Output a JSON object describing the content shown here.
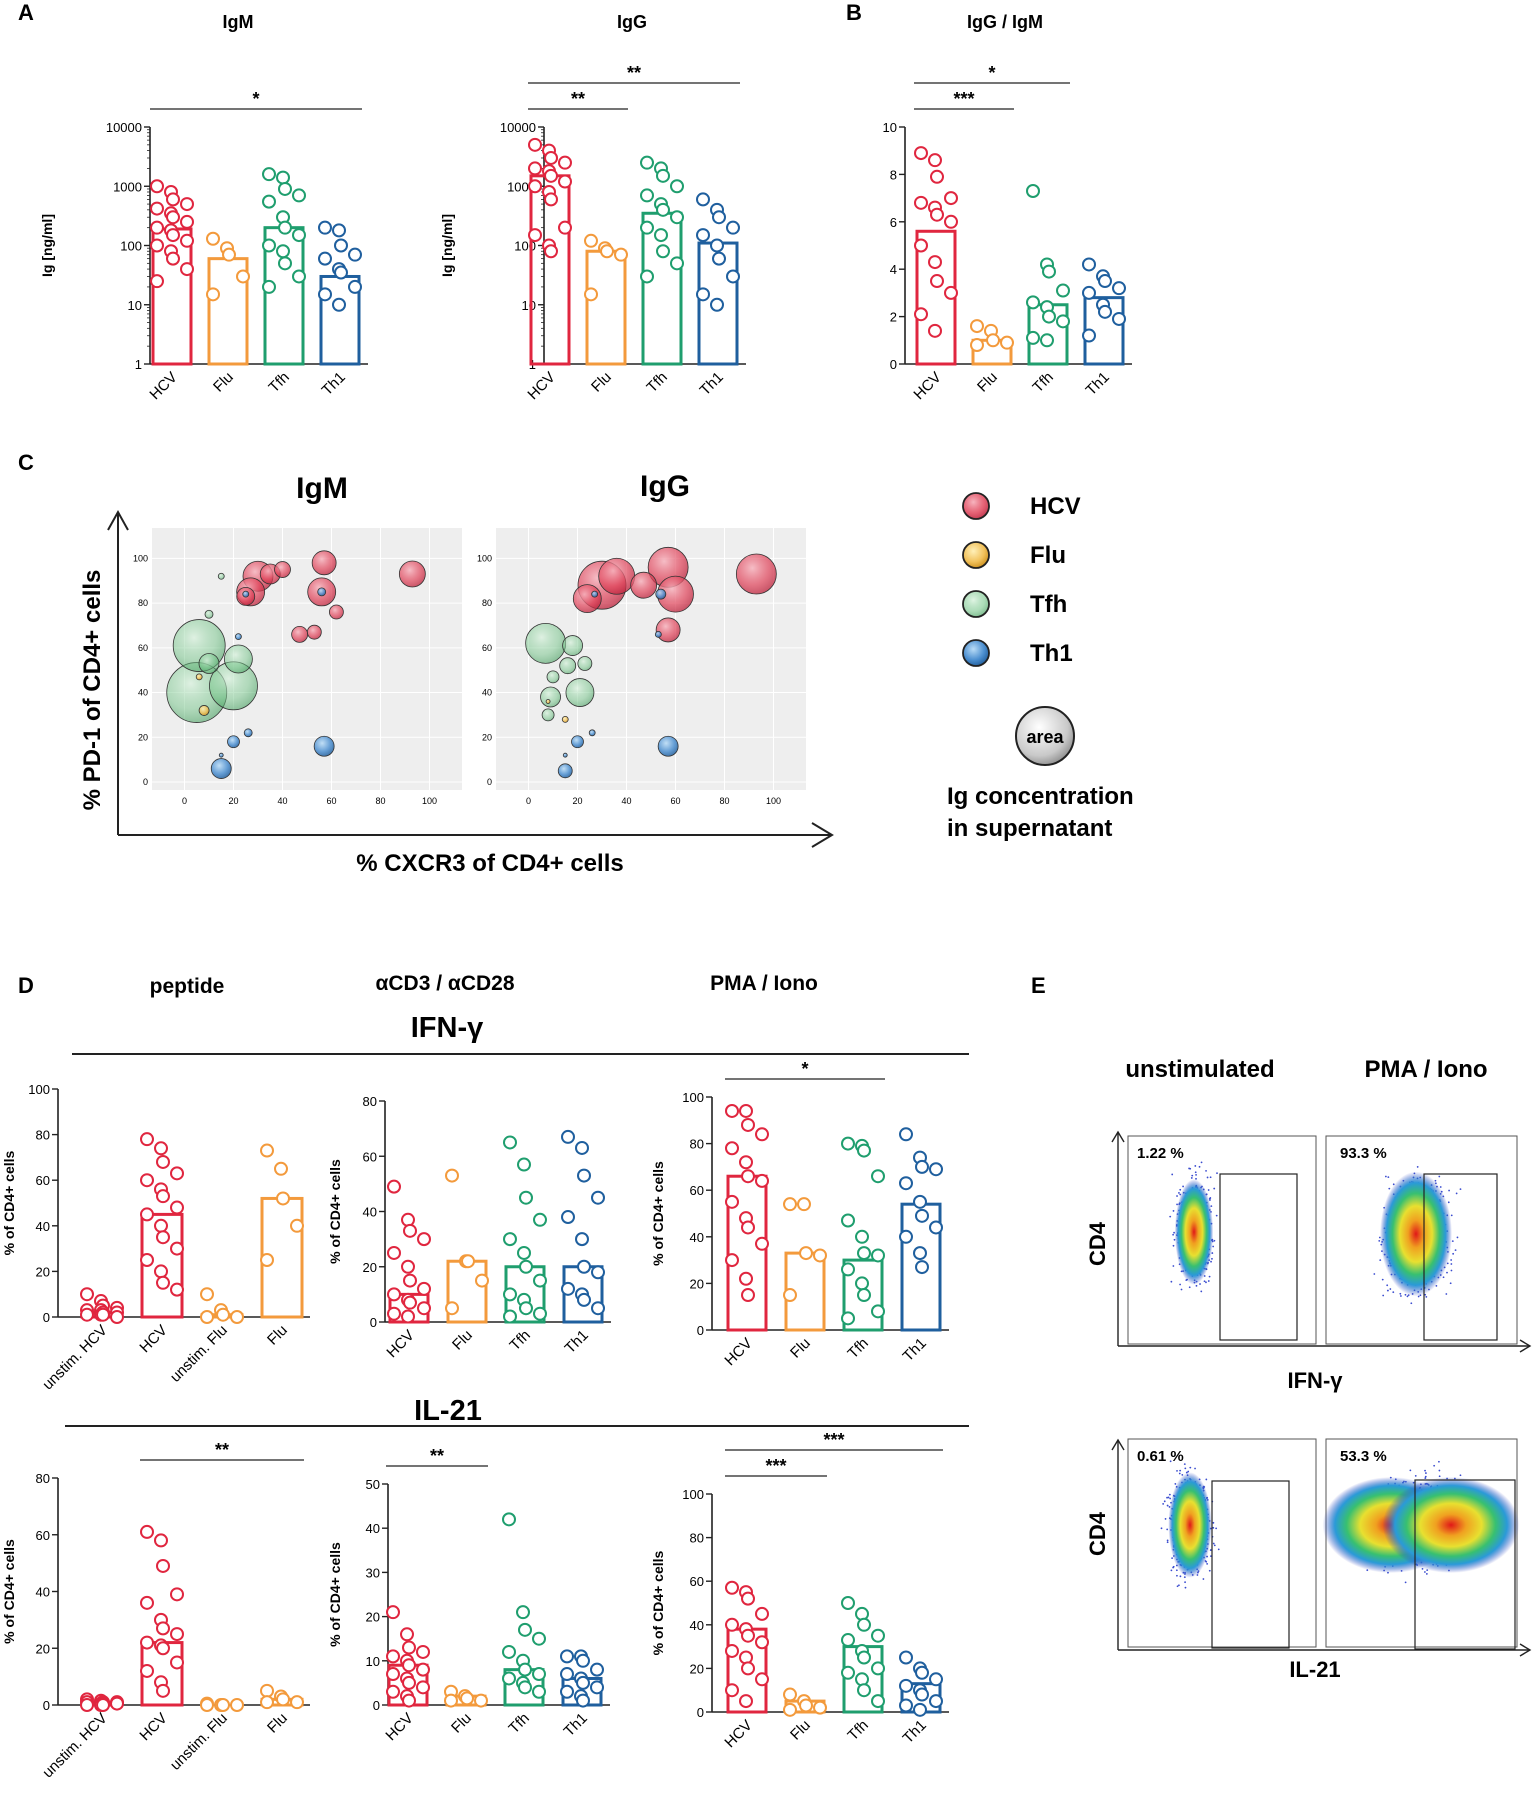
{
  "colors": {
    "HCV": "#e0263f",
    "Flu": "#f39a3c",
    "Tfh": "#1f9e6e",
    "Th1": "#1f5f9e",
    "axis": "#222222"
  },
  "panel_letters": {
    "A": "A",
    "B": "B",
    "C": "C",
    "D": "D",
    "E": "E"
  },
  "chart_data": [
    {
      "id": "A_IgM",
      "type": "bar",
      "scale": "log",
      "title": "IgM",
      "ylabel": "Ig [ng/ml]",
      "ylim": [
        1,
        10000
      ],
      "yticks": [
        "1",
        "10",
        "100",
        "1000",
        "10000"
      ],
      "categories": [
        "HCV",
        "Flu",
        "Tfh",
        "Th1"
      ],
      "values": [
        190,
        60,
        200,
        30
      ],
      "points": [
        [
          1000,
          800,
          600,
          500,
          420,
          350,
          300,
          250,
          200,
          180,
          150,
          120,
          100,
          80,
          60,
          40,
          25
        ],
        [
          130,
          90,
          70,
          30,
          15
        ],
        [
          1600,
          1400,
          900,
          700,
          550,
          300,
          200,
          150,
          100,
          80,
          50,
          30,
          20
        ],
        [
          200,
          180,
          100,
          70,
          60,
          40,
          35,
          20,
          15,
          10
        ]
      ],
      "sig": [
        {
          "from": 0,
          "to": 3,
          "label": "*"
        }
      ]
    },
    {
      "id": "A_IgG",
      "type": "bar",
      "scale": "log",
      "title": "IgG",
      "ylabel": "Ig [ng/ml]",
      "ylim": [
        1,
        10000
      ],
      "yticks": [
        "1",
        "10",
        "100",
        "1000",
        "10000"
      ],
      "categories": [
        "HCV",
        "Flu",
        "Tfh",
        "Th1"
      ],
      "values": [
        1500,
        80,
        350,
        110
      ],
      "points": [
        [
          5000,
          4000,
          3000,
          2500,
          2000,
          1800,
          1500,
          1200,
          1000,
          800,
          600,
          200,
          150,
          100,
          80
        ],
        [
          120,
          90,
          80,
          70,
          15
        ],
        [
          2500,
          2000,
          1500,
          1000,
          700,
          500,
          400,
          300,
          200,
          150,
          80,
          50,
          30
        ],
        [
          600,
          400,
          300,
          200,
          150,
          100,
          60,
          30,
          15,
          10
        ]
      ],
      "sig": [
        {
          "from": 0,
          "to": 1,
          "label": "**"
        },
        {
          "from": 0,
          "to": 3,
          "label": "**"
        }
      ]
    },
    {
      "id": "B_ratio",
      "type": "bar",
      "scale": "linear",
      "title": "IgG / IgM",
      "ylabel": "",
      "ylim": [
        0,
        10
      ],
      "yticks": [
        "0",
        "2",
        "4",
        "6",
        "8",
        "10"
      ],
      "categories": [
        "HCV",
        "Flu",
        "Tfh",
        "Th1"
      ],
      "values": [
        5.6,
        1.0,
        2.5,
        2.8
      ],
      "points": [
        [
          8.9,
          8.6,
          7.9,
          7.0,
          6.8,
          6.6,
          6.3,
          6.0,
          5.0,
          4.3,
          3.5,
          3.0,
          2.1,
          1.4
        ],
        [
          1.6,
          1.4,
          1.0,
          0.9,
          0.8
        ],
        [
          7.3,
          4.2,
          3.9,
          3.1,
          2.6,
          2.4,
          2.0,
          1.8,
          1.1,
          1.0
        ],
        [
          4.2,
          3.7,
          3.5,
          3.2,
          3.0,
          2.5,
          2.2,
          1.9,
          1.2
        ]
      ],
      "sig": [
        {
          "from": 0,
          "to": 1,
          "label": "***"
        },
        {
          "from": 0,
          "to": 2,
          "label": "*"
        }
      ]
    },
    {
      "id": "C_IgM",
      "type": "scatter",
      "title": "IgM",
      "xlim": [
        -10,
        110
      ],
      "ylim": [
        0,
        110
      ],
      "xticks": [
        "0",
        "20",
        "40",
        "60",
        "80",
        "100"
      ],
      "yticks": [
        "0",
        "20",
        "40",
        "60",
        "80",
        "100"
      ],
      "points": [
        {
          "g": "HCV",
          "x": 30,
          "y": 92,
          "r": 15
        },
        {
          "g": "HCV",
          "x": 35,
          "y": 93,
          "r": 10
        },
        {
          "g": "HCV",
          "x": 27,
          "y": 85,
          "r": 14
        },
        {
          "g": "HCV",
          "x": 40,
          "y": 95,
          "r": 8
        },
        {
          "g": "HCV",
          "x": 57,
          "y": 98,
          "r": 12
        },
        {
          "g": "HCV",
          "x": 56,
          "y": 85,
          "r": 14
        },
        {
          "g": "HCV",
          "x": 93,
          "y": 93,
          "r": 13
        },
        {
          "g": "HCV",
          "x": 62,
          "y": 76,
          "r": 7
        },
        {
          "g": "HCV",
          "x": 47,
          "y": 66,
          "r": 8
        },
        {
          "g": "HCV",
          "x": 53,
          "y": 67,
          "r": 7
        },
        {
          "g": "HCV",
          "x": 25,
          "y": 83,
          "r": 9
        },
        {
          "g": "Tfh",
          "x": 6,
          "y": 61,
          "r": 26
        },
        {
          "g": "Tfh",
          "x": 5,
          "y": 40,
          "r": 30
        },
        {
          "g": "Tfh",
          "x": 20,
          "y": 43,
          "r": 24
        },
        {
          "g": "Tfh",
          "x": 22,
          "y": 55,
          "r": 14
        },
        {
          "g": "Tfh",
          "x": 10,
          "y": 53,
          "r": 10
        },
        {
          "g": "Tfh",
          "x": 15,
          "y": 92,
          "r": 3
        },
        {
          "g": "Tfh",
          "x": 10,
          "y": 75,
          "r": 4
        },
        {
          "g": "Flu",
          "x": 8,
          "y": 32,
          "r": 5
        },
        {
          "g": "Flu",
          "x": 6,
          "y": 47,
          "r": 3
        },
        {
          "g": "Th1",
          "x": 15,
          "y": 6,
          "r": 10
        },
        {
          "g": "Th1",
          "x": 20,
          "y": 18,
          "r": 6
        },
        {
          "g": "Th1",
          "x": 57,
          "y": 16,
          "r": 10
        },
        {
          "g": "Th1",
          "x": 26,
          "y": 22,
          "r": 4
        },
        {
          "g": "Th1",
          "x": 15,
          "y": 12,
          "r": 2
        },
        {
          "g": "Th1",
          "x": 56,
          "y": 85,
          "r": 4
        },
        {
          "g": "Th1",
          "x": 25,
          "y": 84,
          "r": 3
        },
        {
          "g": "Th1",
          "x": 22,
          "y": 65,
          "r": 3
        }
      ]
    },
    {
      "id": "C_IgG",
      "type": "scatter",
      "title": "IgG",
      "xlim": [
        -10,
        110
      ],
      "ylim": [
        0,
        110
      ],
      "xticks": [
        "0",
        "20",
        "40",
        "60",
        "80",
        "100"
      ],
      "yticks": [
        "0",
        "20",
        "40",
        "60",
        "80",
        "100"
      ],
      "points": [
        {
          "g": "HCV",
          "x": 30,
          "y": 88,
          "r": 24
        },
        {
          "g": "HCV",
          "x": 36,
          "y": 92,
          "r": 18
        },
        {
          "g": "HCV",
          "x": 57,
          "y": 96,
          "r": 20
        },
        {
          "g": "HCV",
          "x": 60,
          "y": 84,
          "r": 18
        },
        {
          "g": "HCV",
          "x": 93,
          "y": 93,
          "r": 20
        },
        {
          "g": "HCV",
          "x": 47,
          "y": 88,
          "r": 13
        },
        {
          "g": "HCV",
          "x": 57,
          "y": 68,
          "r": 12
        },
        {
          "g": "HCV",
          "x": 24,
          "y": 82,
          "r": 14
        },
        {
          "g": "Tfh",
          "x": 7,
          "y": 62,
          "r": 20
        },
        {
          "g": "Tfh",
          "x": 18,
          "y": 61,
          "r": 10
        },
        {
          "g": "Tfh",
          "x": 16,
          "y": 52,
          "r": 8
        },
        {
          "g": "Tfh",
          "x": 21,
          "y": 40,
          "r": 14
        },
        {
          "g": "Tfh",
          "x": 9,
          "y": 38,
          "r": 10
        },
        {
          "g": "Tfh",
          "x": 23,
          "y": 53,
          "r": 7
        },
        {
          "g": "Tfh",
          "x": 10,
          "y": 47,
          "r": 6
        },
        {
          "g": "Tfh",
          "x": 8,
          "y": 30,
          "r": 6
        },
        {
          "g": "Flu",
          "x": 15,
          "y": 28,
          "r": 3
        },
        {
          "g": "Flu",
          "x": 8,
          "y": 36,
          "r": 2
        },
        {
          "g": "Th1",
          "x": 15,
          "y": 5,
          "r": 7
        },
        {
          "g": "Th1",
          "x": 20,
          "y": 18,
          "r": 6
        },
        {
          "g": "Th1",
          "x": 57,
          "y": 16,
          "r": 10
        },
        {
          "g": "Th1",
          "x": 26,
          "y": 22,
          "r": 3
        },
        {
          "g": "Th1",
          "x": 15,
          "y": 12,
          "r": 2
        },
        {
          "g": "Th1",
          "x": 54,
          "y": 84,
          "r": 5
        },
        {
          "g": "Th1",
          "x": 27,
          "y": 84,
          "r": 3
        },
        {
          "g": "Th1",
          "x": 53,
          "y": 66,
          "r": 3
        }
      ]
    },
    {
      "id": "D_IFN_peptide",
      "type": "bar",
      "scale": "linear",
      "ylabel": "% of CD4+ cells",
      "ylim": [
        0,
        100
      ],
      "yticks": [
        "0",
        "20",
        "40",
        "60",
        "80",
        "100"
      ],
      "categories": [
        "unstim. HCV",
        "HCV",
        "unstim. Flu",
        "Flu"
      ],
      "values": [
        2,
        45,
        1,
        52
      ],
      "points": [
        [
          10,
          7,
          5,
          4,
          3,
          3,
          2,
          2,
          1,
          1,
          1,
          0
        ],
        [
          78,
          74,
          68,
          63,
          60,
          56,
          53,
          48,
          45,
          40,
          35,
          30,
          25,
          20,
          15,
          12
        ],
        [
          10,
          3,
          1,
          0,
          0
        ],
        [
          73,
          65,
          52,
          40,
          25
        ]
      ],
      "sig": []
    },
    {
      "id": "D_IFN_aCD3",
      "type": "bar",
      "scale": "linear",
      "ylabel": "% of CD4+ cells",
      "ylim": [
        0,
        80
      ],
      "yticks": [
        "0",
        "20",
        "40",
        "60",
        "80"
      ],
      "categories": [
        "HCV",
        "Flu",
        "Tfh",
        "Th1"
      ],
      "values": [
        10,
        22,
        20,
        20
      ],
      "points": [
        [
          49,
          37,
          33,
          30,
          25,
          20,
          15,
          12,
          10,
          8,
          7,
          5,
          3,
          2
        ],
        [
          53,
          22,
          22,
          15,
          5
        ],
        [
          65,
          57,
          45,
          37,
          30,
          25,
          20,
          15,
          10,
          8,
          5,
          3,
          2
        ],
        [
          67,
          63,
          53,
          45,
          38,
          30,
          20,
          18,
          12,
          10,
          8,
          5
        ]
      ],
      "sig": []
    },
    {
      "id": "D_IFN_PMA",
      "type": "bar",
      "scale": "linear",
      "ylabel": "% of CD4+ cells",
      "ylim": [
        0,
        100
      ],
      "yticks": [
        "0",
        "20",
        "40",
        "60",
        "80",
        "100"
      ],
      "categories": [
        "HCV",
        "Flu",
        "Tfh",
        "Th1"
      ],
      "values": [
        66,
        33,
        30,
        54
      ],
      "points": [
        [
          94,
          94,
          88,
          84,
          78,
          72,
          66,
          64,
          55,
          48,
          44,
          37,
          30,
          22,
          15
        ],
        [
          54,
          54,
          33,
          32,
          15
        ],
        [
          80,
          79,
          77,
          66,
          47,
          40,
          33,
          32,
          26,
          20,
          15,
          8,
          5
        ],
        [
          84,
          74,
          70,
          69,
          63,
          55,
          49,
          44,
          40,
          33,
          27
        ]
      ],
      "sig": [
        {
          "from": 0,
          "to": 2,
          "label": "*"
        }
      ]
    },
    {
      "id": "D_IL21_peptide",
      "type": "bar",
      "scale": "linear",
      "ylabel": "% of CD4+ cells",
      "ylim": [
        0,
        80
      ],
      "yticks": [
        "0",
        "20",
        "40",
        "60",
        "80"
      ],
      "categories": [
        "unstim. HCV",
        "HCV",
        "unstim. Flu",
        "Flu"
      ],
      "values": [
        1,
        22,
        0,
        2
      ],
      "points": [
        [
          2,
          1.5,
          1,
          1,
          1,
          0.5,
          0.5,
          0.5,
          0,
          0,
          0
        ],
        [
          61,
          58,
          49,
          39,
          36,
          30,
          27,
          25,
          22,
          21,
          20,
          15,
          12,
          8,
          5
        ],
        [
          0.5,
          0,
          0,
          0,
          0
        ],
        [
          5,
          3,
          2,
          1,
          1
        ]
      ],
      "sig": [
        {
          "from": 1,
          "to": 3,
          "label": "**"
        }
      ]
    },
    {
      "id": "D_IL21_aCD3",
      "type": "bar",
      "scale": "linear",
      "ylabel": "% of CD4+ cells",
      "ylim": [
        0,
        50
      ],
      "yticks": [
        "0",
        "10",
        "20",
        "30",
        "40",
        "50"
      ],
      "categories": [
        "HCV",
        "Flu",
        "Tfh",
        "Th1"
      ],
      "values": [
        9,
        2,
        8,
        6
      ],
      "points": [
        [
          21,
          16,
          13,
          12,
          11,
          10,
          9,
          8,
          7,
          6,
          5,
          4,
          3,
          2,
          1
        ],
        [
          3,
          2,
          1.5,
          1,
          1
        ],
        [
          42,
          21,
          17,
          15,
          12,
          10,
          8,
          7,
          6,
          5,
          4,
          3
        ],
        [
          11,
          11,
          10,
          8,
          7,
          6,
          5,
          4,
          3,
          2,
          1
        ]
      ],
      "sig": [
        {
          "from": 0,
          "to": 1,
          "label": "**"
        }
      ]
    },
    {
      "id": "D_IL21_PMA",
      "type": "bar",
      "scale": "linear",
      "ylabel": "% of CD4+ cells",
      "ylim": [
        0,
        100
      ],
      "yticks": [
        "0",
        "20",
        "40",
        "60",
        "80",
        "100"
      ],
      "categories": [
        "HCV",
        "Flu",
        "Tfh",
        "Th1"
      ],
      "values": [
        38,
        5,
        30,
        13
      ],
      "points": [
        [
          57,
          55,
          52,
          45,
          40,
          38,
          35,
          32,
          28,
          25,
          20,
          15,
          10,
          5
        ],
        [
          8,
          5,
          3,
          2,
          1
        ],
        [
          50,
          45,
          40,
          35,
          33,
          28,
          25,
          20,
          18,
          15,
          10,
          5
        ],
        [
          25,
          20,
          18,
          15,
          12,
          10,
          8,
          5,
          3,
          1
        ]
      ],
      "sig": [
        {
          "from": 0,
          "to": 1,
          "label": "***"
        },
        {
          "from": 0,
          "to": 3,
          "label": "***"
        }
      ]
    }
  ],
  "panel_A": {
    "igm_title": "IgM",
    "igg_title": "IgG"
  },
  "panel_B": {
    "title": "IgG / IgM"
  },
  "panel_C": {
    "igm_title": "IgM",
    "igg_title": "IgG",
    "y_axis_label": "% PD-1 of CD4+ cells",
    "x_axis_label": "% CXCR3 of CD4+ cells",
    "legend": [
      {
        "g": "HCV",
        "label": "HCV"
      },
      {
        "g": "Flu",
        "label": "Flu"
      },
      {
        "g": "Tfh",
        "label": "Tfh"
      },
      {
        "g": "Th1",
        "label": "Th1"
      }
    ],
    "area_label": "area",
    "area_caption_1": "Ig concentration",
    "area_caption_2": "in supernatant"
  },
  "panel_D": {
    "col_peptide": "peptide",
    "col_acd3": "αCD3 / αCD28",
    "col_pma": "PMA / Iono",
    "row_ifn": "IFN-γ",
    "row_il21": "IL-21"
  },
  "panel_E": {
    "col_unstim": "unstimulated",
    "col_pma": "PMA / Iono",
    "y_label": "CD4",
    "ifn_label": "IFN-γ",
    "il21_label": "IL-21",
    "pct": {
      "ifn_unstim": "1.22 %",
      "ifn_pma": "93.3 %",
      "il21_unstim": "0.61 %",
      "il21_pma": "53.3 %"
    }
  }
}
